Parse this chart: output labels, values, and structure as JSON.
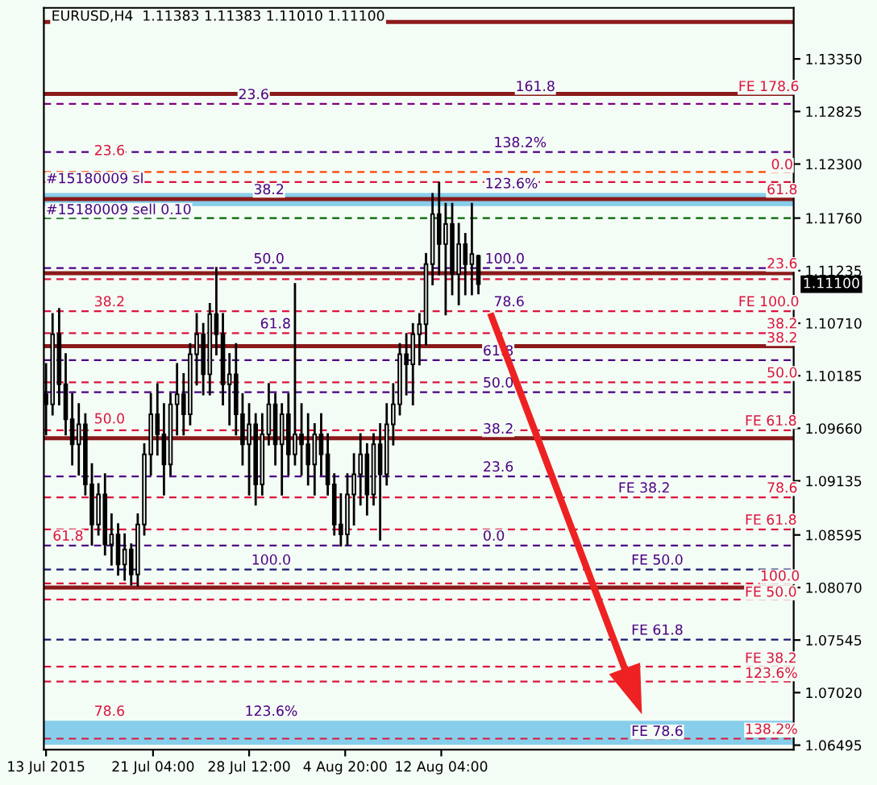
{
  "chart_data": {
    "type": "candlestick",
    "title": "EURUSD,H4  1.11383 1.11383 1.11010 1.11100",
    "color": "#000000",
    "x": [
      "2015-07-13T00:00",
      "2015-07-13T12:00",
      "2015-07-14T00:00",
      "2015-07-14T12:00",
      "2015-07-15T00:00",
      "2015-07-15T12:00",
      "2015-07-16T00:00",
      "2015-07-16T12:00",
      "2015-07-17T00:00",
      "2015-07-17T12:00",
      "2015-07-18T00:00",
      "2015-07-18T12:00",
      "2015-07-19T00:00",
      "2015-07-19T12:00",
      "2015-07-20T00:00",
      "2015-07-20T12:00",
      "2015-07-21T00:00",
      "2015-07-21T12:00",
      "2015-07-22T00:00",
      "2015-07-22T12:00",
      "2015-07-23T00:00",
      "2015-07-23T12:00",
      "2015-07-24T00:00",
      "2015-07-24T12:00",
      "2015-07-25T00:00",
      "2015-07-25T12:00",
      "2015-07-26T00:00",
      "2015-07-26T12:00",
      "2015-07-27T00:00",
      "2015-07-27T12:00",
      "2015-07-28T00:00",
      "2015-07-28T12:00",
      "2015-07-29T00:00",
      "2015-07-29T12:00",
      "2015-07-30T00:00",
      "2015-07-30T12:00",
      "2015-07-31T00:00",
      "2015-07-31T12:00",
      "2015-08-01T00:00",
      "2015-08-01T12:00",
      "2015-08-02T00:00",
      "2015-08-02T12:00",
      "2015-08-03T00:00",
      "2015-08-03T12:00",
      "2015-08-04T00:00",
      "2015-08-04T12:00",
      "2015-08-05T00:00",
      "2015-08-05T12:00",
      "2015-08-06T00:00",
      "2015-08-06T12:00",
      "2015-08-07T00:00",
      "2015-08-07T12:00",
      "2015-08-08T00:00",
      "2015-08-08T12:00",
      "2015-08-09T00:00",
      "2015-08-09T12:00",
      "2015-08-10T00:00",
      "2015-08-10T12:00",
      "2015-08-11T00:00",
      "2015-08-11T12:00",
      "2015-08-12T00:00",
      "2015-08-12T12:00",
      "2015-08-13T00:00",
      "2015-08-13T12:00",
      "2015-08-14T00:00",
      "2015-08-14T12:00",
      "2015-08-15T00:00"
    ],
    "ohlc": [
      [
        1.1,
        1.103,
        1.096,
        1.099
      ],
      [
        1.099,
        1.108,
        1.098,
        1.106
      ],
      [
        1.106,
        1.1085,
        1.099,
        1.101
      ],
      [
        1.101,
        1.104,
        1.096,
        1.0975
      ],
      [
        1.0975,
        1.1,
        1.093,
        1.095
      ],
      [
        1.095,
        1.099,
        1.092,
        1.097
      ],
      [
        1.097,
        1.098,
        1.09,
        1.091
      ],
      [
        1.091,
        1.093,
        1.085,
        1.087
      ],
      [
        1.087,
        1.091,
        1.086,
        1.09
      ],
      [
        1.09,
        1.092,
        1.084,
        1.085
      ],
      [
        1.085,
        1.088,
        1.083,
        1.086
      ],
      [
        1.086,
        1.087,
        1.082,
        1.083
      ],
      [
        1.083,
        1.086,
        1.0815,
        1.0845
      ],
      [
        1.0845,
        1.085,
        1.081,
        1.082
      ],
      [
        1.082,
        1.088,
        1.0809,
        1.087
      ],
      [
        1.087,
        1.095,
        1.086,
        1.094
      ],
      [
        1.094,
        1.1,
        1.092,
        1.098
      ],
      [
        1.098,
        1.101,
        1.094,
        1.096
      ],
      [
        1.096,
        1.099,
        1.09,
        1.093
      ],
      [
        1.093,
        1.1,
        1.092,
        1.099
      ],
      [
        1.099,
        1.103,
        1.096,
        1.1
      ],
      [
        1.1,
        1.102,
        1.096,
        1.098
      ],
      [
        1.098,
        1.105,
        1.097,
        1.104
      ],
      [
        1.104,
        1.108,
        1.101,
        1.106
      ],
      [
        1.106,
        1.107,
        1.1,
        1.102
      ],
      [
        1.102,
        1.109,
        1.1,
        1.108
      ],
      [
        1.108,
        1.1126,
        1.104,
        1.106
      ],
      [
        1.106,
        1.108,
        1.099,
        1.101
      ],
      [
        1.101,
        1.104,
        1.097,
        1.102
      ],
      [
        1.102,
        1.105,
        1.096,
        1.098
      ],
      [
        1.098,
        1.1,
        1.093,
        1.095
      ],
      [
        1.095,
        1.099,
        1.09,
        1.097
      ],
      [
        1.097,
        1.098,
        1.089,
        1.091
      ],
      [
        1.091,
        1.098,
        1.09,
        1.096
      ],
      [
        1.096,
        1.101,
        1.095,
        1.099
      ],
      [
        1.099,
        1.1,
        1.093,
        1.095
      ],
      [
        1.095,
        1.099,
        1.09,
        1.098
      ],
      [
        1.098,
        1.1,
        1.092,
        1.094
      ],
      [
        1.094,
        1.111,
        1.093,
        1.096
      ],
      [
        1.096,
        1.099,
        1.092,
        1.095
      ],
      [
        1.095,
        1.098,
        1.091,
        1.093
      ],
      [
        1.093,
        1.097,
        1.09,
        1.096
      ],
      [
        1.096,
        1.098,
        1.092,
        1.094
      ],
      [
        1.094,
        1.096,
        1.09,
        1.091
      ],
      [
        1.091,
        1.092,
        1.086,
        1.087
      ],
      [
        1.087,
        1.09,
        1.0849,
        1.086
      ],
      [
        1.086,
        1.092,
        1.085,
        1.09
      ],
      [
        1.09,
        1.094,
        1.087,
        1.092
      ],
      [
        1.092,
        1.096,
        1.089,
        1.094
      ],
      [
        1.094,
        1.095,
        1.088,
        1.09
      ],
      [
        1.09,
        1.096,
        1.089,
        1.095
      ],
      [
        1.095,
        1.097,
        1.0855,
        1.092
      ],
      [
        1.092,
        1.099,
        1.091,
        1.097
      ],
      [
        1.097,
        1.101,
        1.095,
        1.099
      ],
      [
        1.099,
        1.105,
        1.098,
        1.104
      ],
      [
        1.104,
        1.106,
        1.1,
        1.103
      ],
      [
        1.103,
        1.107,
        1.099,
        1.106
      ],
      [
        1.106,
        1.108,
        1.103,
        1.107
      ],
      [
        1.107,
        1.114,
        1.105,
        1.113
      ],
      [
        1.113,
        1.12,
        1.111,
        1.118
      ],
      [
        1.118,
        1.1211,
        1.112,
        1.115
      ],
      [
        1.115,
        1.119,
        1.108,
        1.117
      ],
      [
        1.117,
        1.119,
        1.11,
        1.112
      ],
      [
        1.112,
        1.117,
        1.109,
        1.115
      ],
      [
        1.115,
        1.116,
        1.11,
        1.113
      ],
      [
        1.113,
        1.119,
        1.11,
        1.114
      ],
      [
        1.11383,
        1.11383,
        1.1101,
        1.111
      ]
    ],
    "xlim": [
      "2015-07-12T20:00",
      "2015-09-08T01:30"
    ],
    "xticks": [
      {
        "value": "2015-07-13T00:00",
        "label": "13 Jul 2015"
      },
      {
        "value": "2015-07-21T04:00",
        "label": "21 Jul 04:00"
      },
      {
        "value": "2015-07-28T12:00",
        "label": "28 Jul 12:00"
      },
      {
        "value": "2015-08-04T20:00",
        "label": "4 Aug 20:00"
      },
      {
        "value": "2015-08-12T04:00",
        "label": "12 Aug 04:00"
      }
    ],
    "ylim": [
      1.0645,
      1.1386
    ],
    "yticks": [
      {
        "value": 1.06495,
        "label": "1.06495"
      },
      {
        "value": 1.0702,
        "label": "1.07020"
      },
      {
        "value": 1.07545,
        "label": "1.07545"
      },
      {
        "value": 1.0807,
        "label": "1.08070"
      },
      {
        "value": 1.08595,
        "label": "1.08595"
      },
      {
        "value": 1.09135,
        "label": "1.09135"
      },
      {
        "value": 1.0966,
        "label": "1.09660"
      },
      {
        "value": 1.10185,
        "label": "1.10185"
      },
      {
        "value": 1.1071,
        "label": "1.10710"
      },
      {
        "value": 1.11235,
        "label": "1.11235"
      },
      {
        "value": 1.1176,
        "label": "1.11760"
      },
      {
        "value": 1.123,
        "label": "1.12300"
      },
      {
        "value": 1.12825,
        "label": "1.12825"
      },
      {
        "value": 1.1335,
        "label": "1.13350"
      }
    ],
    "grid": false,
    "ref_lines": [
      {
        "axis": "y",
        "value": 1.1372,
        "color": "#8b1a1a",
        "line_style": "solid"
      },
      {
        "axis": "y",
        "value": 1.13,
        "color": "#8b1a1a",
        "line_style": "solid"
      },
      {
        "axis": "y",
        "value": 1.129,
        "color": "#800080",
        "line_style": "dashed"
      },
      {
        "axis": "y",
        "value": 1.1242,
        "color": "#4b0082",
        "line_style": "dashed"
      },
      {
        "axis": "y",
        "value": 1.1222,
        "color": "#ff4500",
        "line_style": "dashed"
      },
      {
        "axis": "y",
        "value": 1.1212,
        "color": "#dc143c",
        "line_style": "dashed"
      },
      {
        "axis": "y",
        "value": 1.1195,
        "color": "#8b1a1a",
        "line_style": "solid"
      },
      {
        "axis": "y",
        "value": 1.1176,
        "color": "#006400",
        "line_style": "dashed"
      },
      {
        "axis": "y",
        "value": 1.1126,
        "color": "#4b0082",
        "line_style": "dashed"
      },
      {
        "axis": "y",
        "value": 1.1121,
        "color": "#8b1a1a",
        "line_style": "solid"
      },
      {
        "axis": "y",
        "value": 1.1115,
        "color": "#dc143c",
        "line_style": "dashed"
      },
      {
        "axis": "y",
        "value": 1.1083,
        "color": "#dc143c",
        "line_style": "dashed"
      },
      {
        "axis": "y",
        "value": 1.1061,
        "color": "#dc143c",
        "line_style": "dashed"
      },
      {
        "axis": "y",
        "value": 1.1048,
        "color": "#8b1a1a",
        "line_style": "solid"
      },
      {
        "axis": "y",
        "value": 1.1034,
        "color": "#4b0082",
        "line_style": "dashed"
      },
      {
        "axis": "y",
        "value": 1.1012,
        "color": "#dc143c",
        "line_style": "dashed"
      },
      {
        "axis": "y",
        "value": 1.1002,
        "color": "#4b0082",
        "line_style": "dashed"
      },
      {
        "axis": "y",
        "value": 1.0964,
        "color": "#dc143c",
        "line_style": "dashed"
      },
      {
        "axis": "y",
        "value": 1.0956,
        "color": "#8b1a1a",
        "line_style": "solid"
      },
      {
        "axis": "y",
        "value": 1.0918,
        "color": "#4b0082",
        "line_style": "dashed"
      },
      {
        "axis": "y",
        "value": 1.0897,
        "color": "#dc143c",
        "line_style": "dashed"
      },
      {
        "axis": "y",
        "value": 1.0865,
        "color": "#dc143c",
        "line_style": "dashed"
      },
      {
        "axis": "y",
        "value": 1.0849,
        "color": "#4b0082",
        "line_style": "dashed"
      },
      {
        "axis": "y",
        "value": 1.0825,
        "color": "#191970",
        "line_style": "dashed"
      },
      {
        "axis": "y",
        "value": 1.0811,
        "color": "#dc143c",
        "line_style": "dashed"
      },
      {
        "axis": "y",
        "value": 1.0807,
        "color": "#8b1a1a",
        "line_style": "solid"
      },
      {
        "axis": "y",
        "value": 1.0795,
        "color": "#dc143c",
        "line_style": "dashed"
      },
      {
        "axis": "y",
        "value": 1.0755,
        "color": "#191970",
        "line_style": "dashed"
      },
      {
        "axis": "y",
        "value": 1.0728,
        "color": "#dc143c",
        "line_style": "dashed"
      },
      {
        "axis": "y",
        "value": 1.0713,
        "color": "#dc143c",
        "line_style": "dashed"
      },
      {
        "axis": "y",
        "value": 1.0656,
        "color": "#dc143c",
        "line_style": "dashed"
      }
    ],
    "bands": [
      {
        "axis": "y",
        "from": 1.1188,
        "to": 1.1201,
        "color": "#87ceeb"
      },
      {
        "axis": "y",
        "from": 1.065,
        "to": 1.0674,
        "color": "#87ceeb"
      }
    ],
    "annotations": [
      {
        "text": "161.8",
        "x": "2015-08-17T20:00",
        "y": 1.13
      },
      {
        "text": "FE 178.6",
        "x": "2015-09-03T20:00",
        "y": 1.13
      },
      {
        "text": "23.6",
        "x": "2015-07-27T16:00",
        "y": 1.1292
      },
      {
        "text": "138.2%",
        "x": "2015-08-16T04:00",
        "y": 1.1244
      },
      {
        "text": "23.6",
        "x": "2015-07-16T16:00",
        "y": 1.1236
      },
      {
        "text": "0.0",
        "x": "2015-09-06T08:00",
        "y": 1.1222
      },
      {
        "text": "#15180009 sl",
        "x": "2015-07-13T00:00",
        "y": 1.1208
      },
      {
        "text": "38.2",
        "x": "2015-07-28T20:00",
        "y": 1.1197
      },
      {
        "text": "123.6%",
        "x": "2015-08-15T12:00",
        "y": 1.1203
      },
      {
        "text": "61.8",
        "x": "2015-09-06T00:00",
        "y": 1.1197
      },
      {
        "text": "#15180009 sell 0.10",
        "x": "2015-07-13T00:00",
        "y": 1.1177
      },
      {
        "text": "50.0",
        "x": "2015-07-28T20:00",
        "y": 1.1128
      },
      {
        "text": "100.0",
        "x": "2015-08-15T12:00",
        "y": 1.1128
      },
      {
        "text": "23.6",
        "x": "2015-09-06T00:00",
        "y": 1.1123
      },
      {
        "text": "38.2",
        "x": "2015-07-16T16:00",
        "y": 1.1085
      },
      {
        "text": "78.6",
        "x": "2015-08-16T04:00",
        "y": 1.1085
      },
      {
        "text": "FE 100.0",
        "x": "2015-09-03T20:00",
        "y": 1.1085
      },
      {
        "text": "61.8",
        "x": "2015-07-29T08:00",
        "y": 1.1063
      },
      {
        "text": "38.2",
        "x": "2015-09-06T00:00",
        "y": 1.1063
      },
      {
        "text": "38.2",
        "x": "2015-09-06T00:00",
        "y": 1.1049
      },
      {
        "text": "61.8",
        "x": "2015-08-15T08:00",
        "y": 1.1036
      },
      {
        "text": "50.0",
        "x": "2015-09-06T00:00",
        "y": 1.1014
      },
      {
        "text": "50.0",
        "x": "2015-08-15T08:00",
        "y": 1.1004
      },
      {
        "text": "50.0",
        "x": "2015-07-16T16:00",
        "y": 1.0968
      },
      {
        "text": "FE 61.8",
        "x": "2015-09-04T08:00",
        "y": 1.0966
      },
      {
        "text": "38.2",
        "x": "2015-08-15T08:00",
        "y": 1.0958
      },
      {
        "text": "23.6",
        "x": "2015-08-15T08:00",
        "y": 1.092
      },
      {
        "text": "FE 38.2",
        "x": "2015-08-25T16:00",
        "y": 1.0899
      },
      {
        "text": "78.6",
        "x": "2015-09-06T00:00",
        "y": 1.0899
      },
      {
        "text": "FE 61.8",
        "x": "2015-09-04T08:00",
        "y": 1.0867
      },
      {
        "text": "61.8",
        "x": "2015-07-13T12:00",
        "y": 1.0851
      },
      {
        "text": "0.0",
        "x": "2015-08-15T08:00",
        "y": 1.0851
      },
      {
        "text": "100.0",
        "x": "2015-07-28T16:00",
        "y": 1.0827
      },
      {
        "text": "FE 50.0",
        "x": "2015-08-26T16:00",
        "y": 1.0827
      },
      {
        "text": "100.0",
        "x": "2015-09-05T12:00",
        "y": 1.0811
      },
      {
        "text": "FE 50.0",
        "x": "2015-09-04T08:00",
        "y": 1.0795
      },
      {
        "text": "FE 61.8",
        "x": "2015-08-26T16:00",
        "y": 1.0757
      },
      {
        "text": "FE 38.2",
        "x": "2015-09-04T08:00",
        "y": 1.0729
      },
      {
        "text": "123.6%",
        "x": "2015-09-04T08:00",
        "y": 1.0714
      },
      {
        "text": "78.6",
        "x": "2015-07-16T16:00",
        "y": 1.0676
      },
      {
        "text": "123.6%",
        "x": "2015-07-28T04:00",
        "y": 1.0676
      },
      {
        "text": "FE 78.6",
        "x": "2015-08-26T16:00",
        "y": 1.0656
      },
      {
        "text": "138.2%",
        "x": "2015-09-04T08:00",
        "y": 1.0658
      },
      "1.11100"
    ]
  }
}
